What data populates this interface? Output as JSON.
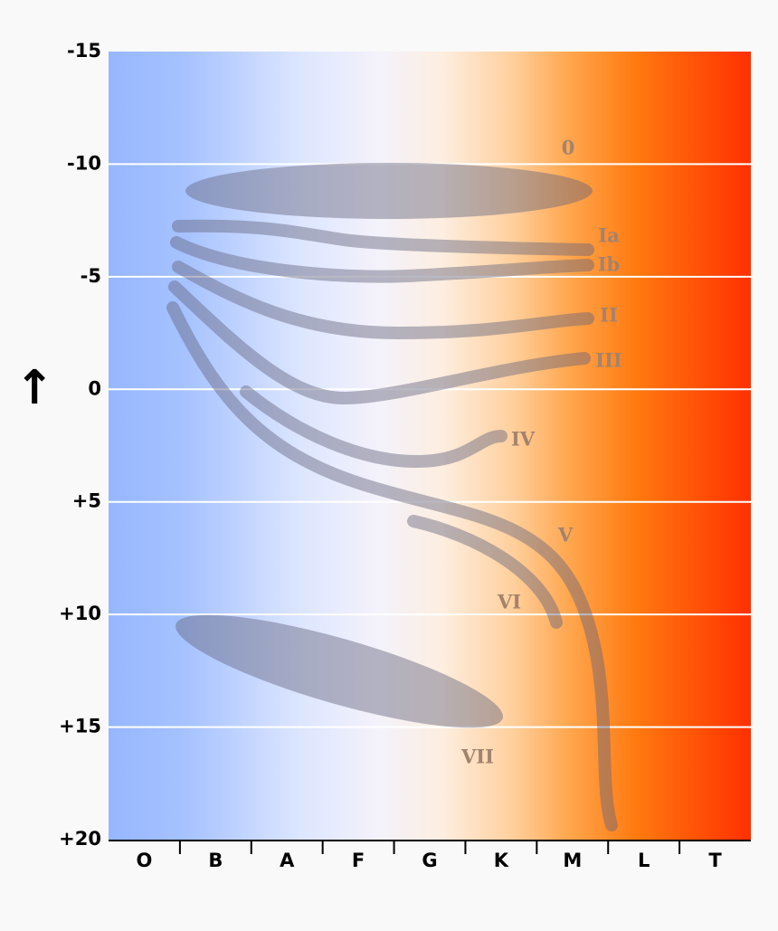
{
  "y_axis": {
    "labels": [
      "-15",
      "-10",
      "-5",
      "0",
      "+5",
      "+10",
      "+15",
      "+20"
    ],
    "arrow": "↑"
  },
  "x_axis": {
    "labels": [
      "O",
      "B",
      "A",
      "F",
      "G",
      "K",
      "M",
      "L",
      "T"
    ]
  },
  "luminosity_classes": [
    "0",
    "Ia",
    "Ib",
    "II",
    "III",
    "IV",
    "V",
    "VI",
    "VII"
  ]
}
